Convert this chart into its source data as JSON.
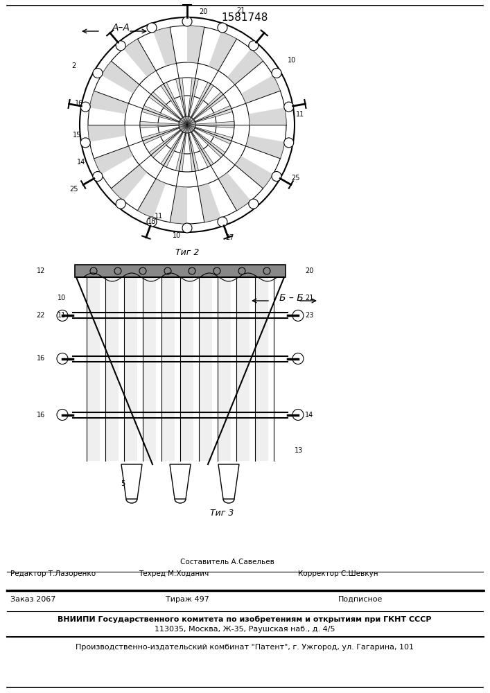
{
  "title": "1581748",
  "fig2_label": "Τиг 2",
  "fig3_label": "Τиг 3",
  "section_aa": "A–A",
  "section_bb": "Б – Б",
  "footer_line1_col1": "Редактор Т.Лазоренко",
  "footer_line1_col2": "Составитель А.Савельев",
  "footer_line1_col2b": "Техред М.Ходанич",
  "footer_line1_col3": "Корректор С.Шевкун",
  "footer_line2_col1": "Заказ 2067",
  "footer_line2_col2": "Тираж 497",
  "footer_line2_col3": "Подписное",
  "footer_line3": "ВНИИПИ Государственного комитета по изобретениям и открытиям при ГКНТ СССР",
  "footer_line4": "113035, Москва, Ж-35, Раушская наб., д. 4/5",
  "footer_line5": "Производственно-издательский комбинат \"Патент\", г. Ужгород, ул. Гагарина, 101",
  "bg_color": "#ffffff",
  "line_color": "#000000"
}
